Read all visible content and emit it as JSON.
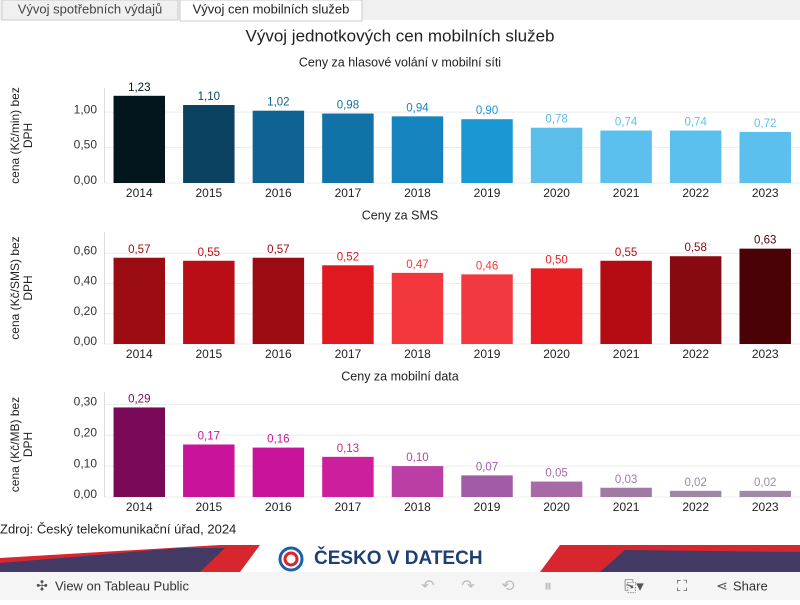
{
  "tabs": [
    "Vývoj spotřebních výdajů",
    "Vývoj cen mobilních služeb"
  ],
  "title": "Vývoj jednotkových cen mobilních služeb",
  "chart_data": [
    {
      "type": "bar",
      "title": "Ceny za hlasové volání v mobilní síti",
      "y_label": [
        "cena (Kč/min) bez",
        "DPH"
      ],
      "categories": [
        "2014",
        "2015",
        "2016",
        "2017",
        "2018",
        "2019",
        "2020",
        "2021",
        "2022",
        "2023"
      ],
      "values": [
        1.23,
        1.1,
        1.02,
        0.98,
        0.94,
        0.9,
        0.78,
        0.74,
        0.74,
        0.72
      ],
      "value_labels": [
        "1,23",
        "1,10",
        "1,02",
        "0,98",
        "0,94",
        "0,90",
        "0,78",
        "0,74",
        "0,74",
        "0,72"
      ],
      "colors": [
        "#03161e",
        "#0b4261",
        "#0e6392",
        "#1172a7",
        "#1584be",
        "#1a98d4",
        "#5bbde9",
        "#5cc0ee",
        "#5cc0ee",
        "#5cc0ee"
      ],
      "ylim": [
        0,
        1.34
      ],
      "yticks": [
        {
          "value": 0,
          "label": "0,00"
        },
        {
          "value": 0.5,
          "label": "0,50"
        },
        {
          "value": 1,
          "label": "1,00"
        }
      ],
      "grid": true
    },
    {
      "type": "bar",
      "title": "Ceny za SMS",
      "y_label": [
        "cena (Kč/SMS) bez",
        "DPH"
      ],
      "categories": [
        "2014",
        "2015",
        "2016",
        "2017",
        "2018",
        "2019",
        "2020",
        "2021",
        "2022",
        "2023"
      ],
      "values": [
        0.57,
        0.55,
        0.57,
        0.52,
        0.47,
        0.46,
        0.5,
        0.55,
        0.58,
        0.63
      ],
      "value_labels": [
        "0,57",
        "0,55",
        "0,57",
        "0,52",
        "0,47",
        "0,46",
        "0,50",
        "0,55",
        "0,58",
        "0,63"
      ],
      "colors": [
        "#9b0c12",
        "#b90e16",
        "#9b0c12",
        "#e0181f",
        "#f2373d",
        "#f2393f",
        "#e71f25",
        "#b50c14",
        "#870a11",
        "#4b0207"
      ],
      "ylim": [
        0,
        0.74
      ],
      "yticks": [
        {
          "value": 0,
          "label": "0,00"
        },
        {
          "value": 0.2,
          "label": "0,20"
        },
        {
          "value": 0.4,
          "label": "0,40"
        },
        {
          "value": 0.6,
          "label": "0,60"
        }
      ],
      "grid": true
    },
    {
      "type": "bar",
      "title": "Ceny za mobilní data",
      "y_label": [
        "cena (Kč/MB) bez",
        "DPH"
      ],
      "categories": [
        "2014",
        "2015",
        "2016",
        "2017",
        "2018",
        "2019",
        "2020",
        "2021",
        "2022",
        "2023"
      ],
      "values": [
        0.29,
        0.17,
        0.16,
        0.13,
        0.1,
        0.07,
        0.05,
        0.03,
        0.02,
        0.02
      ],
      "value_labels": [
        "0,29",
        "0,17",
        "0,16",
        "0,13",
        "0,10",
        "0,07",
        "0,05",
        "0,03",
        "0,02",
        "0,02"
      ],
      "colors": [
        "#7a0a58",
        "#c8139a",
        "#c8139a",
        "#cc1f9d",
        "#bb3ea6",
        "#a15aa5",
        "#a86aa6",
        "#a07aa4",
        "#a086a5",
        "#a08aa5"
      ],
      "ylim": [
        0,
        0.34
      ],
      "yticks": [
        {
          "value": 0,
          "label": "0,00"
        },
        {
          "value": 0.1,
          "label": "0,10"
        },
        {
          "value": 0.2,
          "label": "0,20"
        },
        {
          "value": 0.3,
          "label": "0,30"
        }
      ],
      "grid": true
    }
  ],
  "source": "Zdroj: Český telekomunikační úřad, 2024",
  "brand": "ČESKO V DATECH",
  "toolbar": {
    "view": "View on Tableau Public",
    "share": "Share"
  }
}
